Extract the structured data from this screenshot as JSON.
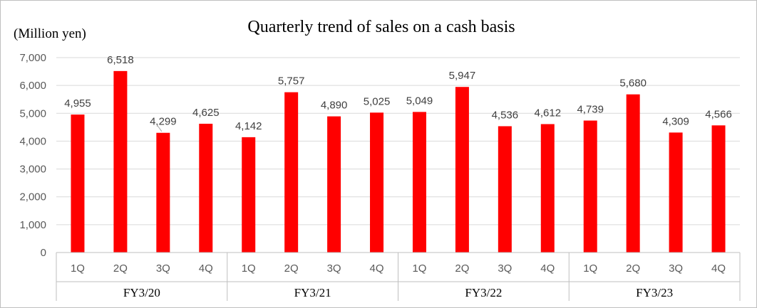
{
  "chart_data": {
    "type": "bar",
    "title": "Quarterly trend of sales on a cash basis",
    "ylabel": "(Million yen)",
    "xlabel": "",
    "ylim": [
      0,
      7000
    ],
    "yticks": [
      "0",
      "1,000",
      "2,000",
      "3,000",
      "4,000",
      "5,000",
      "6,000",
      "7,000"
    ],
    "ytick_values": [
      0,
      1000,
      2000,
      3000,
      4000,
      5000,
      6000,
      7000
    ],
    "grid": true,
    "legend": "none",
    "bar_color": "#ff0000",
    "groups": [
      {
        "label": "FY3/20",
        "categories": [
          "1Q",
          "2Q",
          "3Q",
          "4Q"
        ],
        "values": [
          4955,
          6518,
          4299,
          4625
        ],
        "labels": [
          "4,955",
          "6,518",
          "4,299",
          "4,625"
        ]
      },
      {
        "label": "FY3/21",
        "categories": [
          "1Q",
          "2Q",
          "3Q",
          "4Q"
        ],
        "values": [
          4142,
          5757,
          4890,
          5025
        ],
        "labels": [
          "4,142",
          "5,757",
          "4,890",
          "5,025"
        ]
      },
      {
        "label": "FY3/22",
        "categories": [
          "1Q",
          "2Q",
          "3Q",
          "4Q"
        ],
        "values": [
          5049,
          5947,
          4536,
          4612
        ],
        "labels": [
          "5,049",
          "5,947",
          "4,536",
          "4,612"
        ]
      },
      {
        "label": "FY3/23",
        "categories": [
          "1Q",
          "2Q",
          "3Q",
          "4Q"
        ],
        "values": [
          4739,
          5680,
          4309,
          4566
        ],
        "labels": [
          "4,739",
          "5,680",
          "4,309",
          "4,566"
        ]
      }
    ]
  }
}
